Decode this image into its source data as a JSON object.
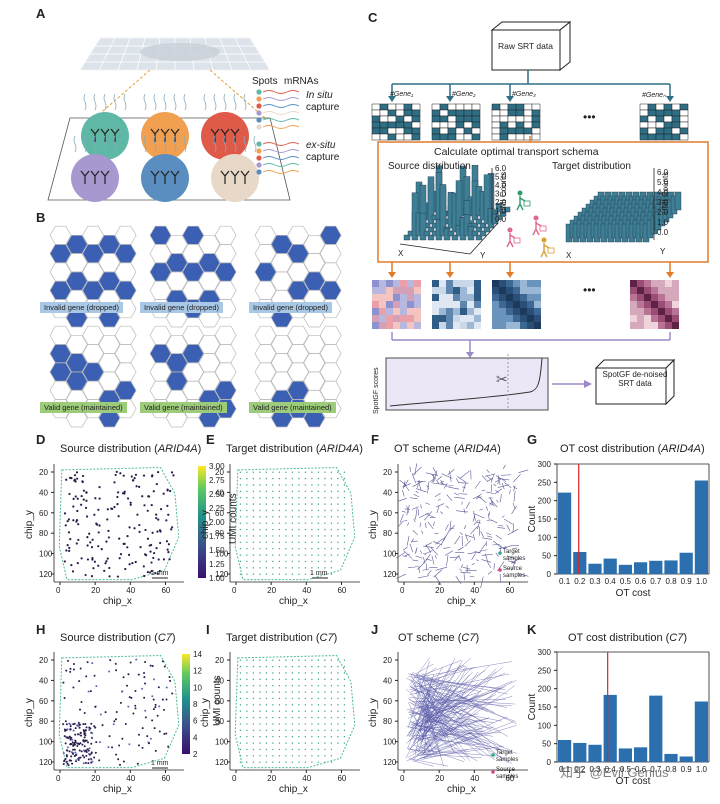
{
  "panel_letters": {
    "A": "A",
    "B": "B",
    "C": "C",
    "D": "D",
    "E": "E",
    "F": "F",
    "G": "G",
    "H": "H",
    "I": "I",
    "J": "J",
    "K": "K"
  },
  "panelA": {
    "legend_spots": "Spots",
    "legend_mrnas": "mRNAs",
    "in_situ": "In situ",
    "capture1": "capture",
    "ex_situ": "ex-situ",
    "capture2": "capture",
    "spot_colors": [
      "#5fb8a6",
      "#f0a050",
      "#e05a4a",
      "#a898d0",
      "#5a8ec0",
      "#e8d8c8"
    ]
  },
  "panelB": {
    "invalid_label": "Invalid gene (dropped)",
    "valid_label": "Valid gene (maintained)",
    "hex_fill": "#3b5fb3"
  },
  "panelC": {
    "raw": "Raw SRT data",
    "genes": [
      "#Gene₁",
      "#Gene₂",
      "#Gene₃",
      "#Geneₙ"
    ],
    "ellipsis": "•••",
    "ot_title": "Calculate optimal transport schema",
    "source": "Source distribution",
    "target": "Target distribution",
    "score_axis": "SpotGF scores",
    "denoised": "SpotGF de-noised SRT data",
    "umi_axis": "UMI Counts",
    "bar_ticks": [
      "0.0",
      "1.0",
      "2.0",
      "3.0",
      "4.0",
      "5.0",
      "6.0"
    ],
    "teal": "#2e6f86",
    "orange": "#e07b2a",
    "purple": "#9b8ac7"
  },
  "panelD": {
    "title": "Source distribution (",
    "gene": "ARID4A",
    "close": ")",
    "colorbar_label": "UMI counts",
    "cb_ticks": [
      "3.00",
      "2.75",
      "2.50",
      "2.25",
      "2.00",
      "1.75",
      "1.50",
      "1.25",
      "1.00"
    ],
    "scale": "1 mm"
  },
  "panelE": {
    "title": "Target distribution (",
    "gene": "ARID4A",
    "close": ")",
    "scale": "1 mm"
  },
  "panelF": {
    "title": "OT scheme (",
    "gene": "ARID4A",
    "close": ")",
    "target_samples": "Target samples",
    "source_samples": "Source samples"
  },
  "panelH": {
    "title": "Source distribution (",
    "gene": "C7",
    "close": ")",
    "colorbar_label": "UMI counts",
    "cb_ticks": [
      "14",
      "12",
      "10",
      "8",
      "6",
      "4",
      "2"
    ],
    "scale": "1 mm"
  },
  "panelI": {
    "title": "Target distribution (",
    "gene": "C7",
    "close": ")"
  },
  "panelJ": {
    "title": "OT scheme (",
    "gene": "C7",
    "close": ")",
    "target_samples": "Target samples",
    "source_samples": "Source samples"
  },
  "axes": {
    "x": "chip_x",
    "y": "chip_y",
    "xticks": [
      "0",
      "20",
      "40",
      "60"
    ],
    "yticks": [
      "20",
      "40",
      "60",
      "80",
      "100",
      "120"
    ]
  },
  "panelG": {
    "title": "OT cost distribution (",
    "gene": "ARID4A",
    "close": ")"
  },
  "panelK": {
    "title": "OT cost distribution (",
    "gene": "C7",
    "close": ")"
  },
  "watermark": "知乎 @Evil Genius",
  "chart_data": [
    {
      "type": "bar",
      "title": "OT cost distribution (ARID4A)",
      "xlabel": "OT cost",
      "ylabel": "Count",
      "categories": [
        "0.1",
        "0.2",
        "0.3",
        "0.4",
        "0.5",
        "0.6",
        "0.7",
        "0.8",
        "0.9",
        "1.0"
      ],
      "values": [
        222,
        60,
        28,
        42,
        25,
        32,
        36,
        37,
        58,
        255
      ],
      "ylim": [
        0,
        300
      ],
      "yticks": [
        "0",
        "50",
        "100",
        "150",
        "200",
        "250",
        "300"
      ],
      "color": "#2b6fae",
      "threshold_x": 0.15
    },
    {
      "type": "bar",
      "title": "OT cost distribution (C7)",
      "xlabel": "OT cost",
      "ylabel": "Count",
      "categories": [
        "0.1",
        "0.2",
        "0.3",
        "0.4",
        "0.5",
        "0.6",
        "0.7",
        "0.8",
        "0.9",
        "1.0"
      ],
      "values": [
        60,
        52,
        47,
        183,
        37,
        40,
        181,
        22,
        15,
        165
      ],
      "ylim": [
        0,
        300
      ],
      "yticks": [
        "0",
        "50",
        "100",
        "150",
        "200",
        "250",
        "300"
      ],
      "color": "#2b6fae",
      "threshold_x": 0.35
    }
  ]
}
